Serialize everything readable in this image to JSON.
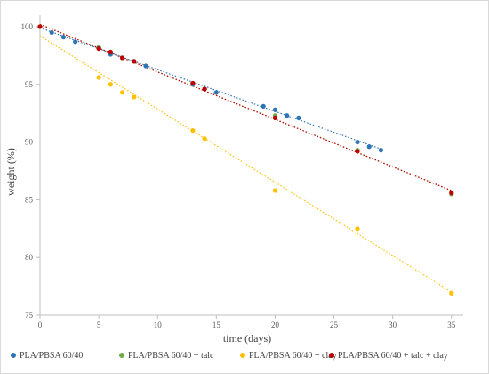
{
  "chart_data": {
    "type": "scatter",
    "xlabel": "time (days)",
    "ylabel": "weight (%)",
    "xlim": [
      0,
      36
    ],
    "ylim": [
      75,
      101
    ],
    "xticks": [
      "0",
      "5",
      "10",
      "15",
      "20",
      "25",
      "30",
      "35"
    ],
    "yticks": [
      "75",
      "80",
      "85",
      "90",
      "95",
      "100"
    ],
    "grid": false,
    "legend_position": "bottom",
    "series": [
      {
        "name": "PLA/PBSA 60/40",
        "color": "#2e75b6",
        "points": [
          [
            0,
            100
          ],
          [
            1,
            99.5
          ],
          [
            2,
            99.1
          ],
          [
            3,
            98.7
          ],
          [
            5,
            98.2
          ],
          [
            6,
            97.6
          ],
          [
            7,
            97.3
          ],
          [
            8,
            97.0
          ],
          [
            9,
            96.6
          ],
          [
            13,
            95.0
          ],
          [
            14,
            94.6
          ],
          [
            15,
            94.3
          ],
          [
            19,
            93.1
          ],
          [
            20,
            92.8
          ],
          [
            21,
            92.3
          ],
          [
            22,
            92.1
          ],
          [
            27,
            90.0
          ],
          [
            28,
            89.6
          ],
          [
            29,
            89.3
          ]
        ],
        "trend": [
          [
            0,
            99.9
          ],
          [
            29,
            89.4
          ]
        ]
      },
      {
        "name": "PLA/PBSA 60/40 + talc",
        "color": "#70ad47",
        "points": [
          [
            0,
            100
          ],
          [
            5,
            98.2
          ],
          [
            6,
            97.8
          ],
          [
            7,
            97.3
          ],
          [
            8,
            97.0
          ],
          [
            13,
            95.1
          ],
          [
            14,
            94.6
          ],
          [
            20,
            92.3
          ],
          [
            27,
            89.3
          ],
          [
            35,
            85.5
          ]
        ],
        "trend": [
          [
            0,
            100.2
          ],
          [
            35,
            85.8
          ]
        ]
      },
      {
        "name": "PLA/PBSA 60/40 + clay",
        "color": "#ffc000",
        "points": [
          [
            0,
            100
          ],
          [
            5,
            95.6
          ],
          [
            6,
            95.0
          ],
          [
            7,
            94.3
          ],
          [
            8,
            93.9
          ],
          [
            13,
            91.0
          ],
          [
            14,
            90.3
          ],
          [
            20,
            85.8
          ],
          [
            27,
            82.5
          ],
          [
            35,
            76.9
          ]
        ],
        "trend": [
          [
            0,
            99.2
          ],
          [
            35,
            77.0
          ]
        ]
      },
      {
        "name": "PLA/PBSA 60/40 + talc + clay",
        "color": "#c00000",
        "points": [
          [
            0,
            100
          ],
          [
            5,
            98.1
          ],
          [
            6,
            97.8
          ],
          [
            7,
            97.3
          ],
          [
            8,
            97.0
          ],
          [
            13,
            95.1
          ],
          [
            14,
            94.6
          ],
          [
            20,
            92.1
          ],
          [
            27,
            89.2
          ],
          [
            35,
            85.6
          ]
        ],
        "trend": [
          [
            0,
            100.2
          ],
          [
            35,
            85.8
          ]
        ]
      }
    ]
  }
}
